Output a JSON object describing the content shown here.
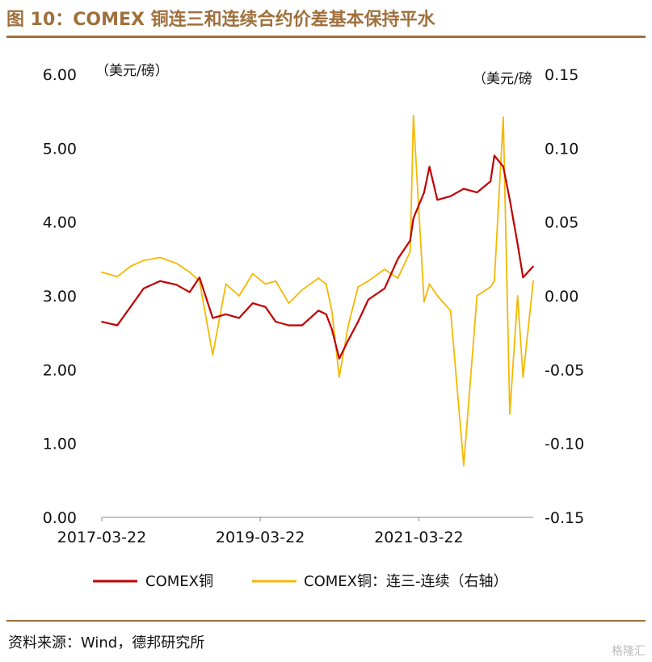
{
  "header": {
    "title": "图 10：COMEX 铜连三和连续合约价差基本保持平水"
  },
  "footer": {
    "source": "资料来源：Wind，德邦研究所",
    "watermark": "格隆汇"
  },
  "chart_data": {
    "type": "line",
    "title": "图 10：COMEX 铜连三和连续合约价差基本保持平水",
    "left_unit": "（美元/磅）",
    "right_unit": "（美元/磅",
    "x_ticks": [
      "2017-03-22",
      "2019-03-22",
      "2021-03-22"
    ],
    "x_range": [
      "2017-03-22",
      "2022-08-31"
    ],
    "y_left": {
      "min": 0,
      "max": 6,
      "ticks": [
        "0.00",
        "1.00",
        "2.00",
        "3.00",
        "4.00",
        "5.00",
        "6.00"
      ]
    },
    "y_right": {
      "min": -0.15,
      "max": 0.15,
      "ticks": [
        "-0.15",
        "-0.10",
        "-0.05",
        "0.00",
        "0.05",
        "0.10",
        "0.15"
      ]
    },
    "grid": false,
    "legend_position": "bottom",
    "colors": {
      "copper": "#c00000",
      "spread": "#f5b800",
      "accent": "#a0703c"
    },
    "series": [
      {
        "name": "COMEX铜",
        "axis": "left",
        "x": [
          "2017-03-22",
          "2017-06-01",
          "2017-08-01",
          "2017-10-01",
          "2017-12-15",
          "2018-03-01",
          "2018-05-01",
          "2018-06-15",
          "2018-08-15",
          "2018-10-15",
          "2018-12-15",
          "2019-02-15",
          "2019-04-15",
          "2019-06-01",
          "2019-08-01",
          "2019-10-01",
          "2019-12-15",
          "2020-01-20",
          "2020-02-15",
          "2020-03-20",
          "2020-05-01",
          "2020-06-15",
          "2020-08-01",
          "2020-10-15",
          "2020-12-15",
          "2021-02-10",
          "2021-02-25",
          "2021-04-15",
          "2021-05-10",
          "2021-06-15",
          "2021-08-15",
          "2021-10-15",
          "2021-12-15",
          "2022-02-15",
          "2022-03-05",
          "2022-04-15",
          "2022-05-15",
          "2022-06-20",
          "2022-07-15",
          "2022-08-31"
        ],
        "y": [
          2.65,
          2.6,
          2.85,
          3.1,
          3.2,
          3.15,
          3.05,
          3.25,
          2.7,
          2.75,
          2.7,
          2.9,
          2.85,
          2.65,
          2.6,
          2.6,
          2.8,
          2.75,
          2.55,
          2.15,
          2.4,
          2.65,
          2.95,
          3.1,
          3.5,
          3.75,
          4.05,
          4.4,
          4.75,
          4.3,
          4.35,
          4.45,
          4.4,
          4.55,
          4.9,
          4.75,
          4.3,
          3.7,
          3.25,
          3.4
        ]
      },
      {
        "name": "COMEX铜：连三-连续（右轴）",
        "axis": "right",
        "x": [
          "2017-03-22",
          "2017-06-01",
          "2017-08-01",
          "2017-10-01",
          "2017-12-15",
          "2018-03-01",
          "2018-05-01",
          "2018-06-15",
          "2018-08-15",
          "2018-10-15",
          "2018-12-15",
          "2019-02-15",
          "2019-04-15",
          "2019-06-01",
          "2019-08-01",
          "2019-10-01",
          "2019-12-15",
          "2020-01-20",
          "2020-02-15",
          "2020-03-20",
          "2020-05-01",
          "2020-06-15",
          "2020-08-01",
          "2020-10-15",
          "2020-12-15",
          "2021-02-10",
          "2021-02-25",
          "2021-04-15",
          "2021-05-10",
          "2021-06-15",
          "2021-08-15",
          "2021-10-15",
          "2021-12-15",
          "2022-02-15",
          "2022-03-05",
          "2022-04-15",
          "2022-05-15",
          "2022-06-20",
          "2022-07-15",
          "2022-08-31"
        ],
        "y": [
          0.016,
          0.013,
          0.02,
          0.024,
          0.026,
          0.022,
          0.016,
          0.01,
          -0.04,
          0.008,
          0.0,
          0.015,
          0.008,
          0.01,
          -0.005,
          0.004,
          0.012,
          0.008,
          -0.01,
          -0.055,
          -0.02,
          0.006,
          0.01,
          0.018,
          0.012,
          0.03,
          0.122,
          -0.004,
          0.008,
          0.0,
          -0.01,
          -0.115,
          0.0,
          0.006,
          0.01,
          0.121,
          -0.08,
          0.0,
          -0.055,
          0.01
        ]
      }
    ]
  }
}
